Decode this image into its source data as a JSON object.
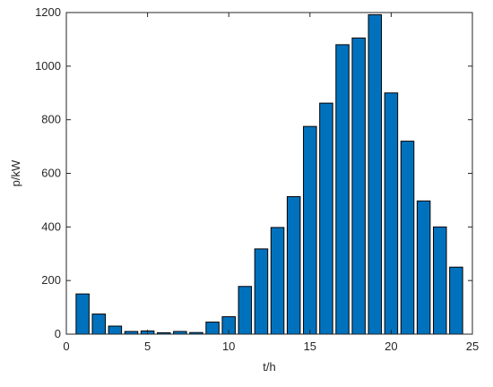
{
  "chart_data": {
    "type": "bar",
    "title": "",
    "xlabel": "t/h",
    "ylabel": "p/kW",
    "x": [
      1,
      2,
      3,
      4,
      5,
      6,
      7,
      8,
      9,
      10,
      11,
      12,
      13,
      14,
      15,
      16,
      17,
      18,
      19,
      20,
      21,
      22,
      23,
      24
    ],
    "values": [
      150,
      75,
      30,
      10,
      12,
      5,
      10,
      6,
      45,
      65,
      178,
      318,
      398,
      513,
      775,
      862,
      1080,
      1105,
      1192,
      900,
      720,
      497,
      400,
      250
    ],
    "xlim": [
      0,
      25
    ],
    "ylim": [
      0,
      1200
    ],
    "xticks": [
      0,
      5,
      10,
      15,
      20,
      25
    ],
    "yticks": [
      0,
      200,
      400,
      600,
      800,
      1000,
      1200
    ],
    "bar_color": "#0072BD",
    "grid": false,
    "box": true
  }
}
